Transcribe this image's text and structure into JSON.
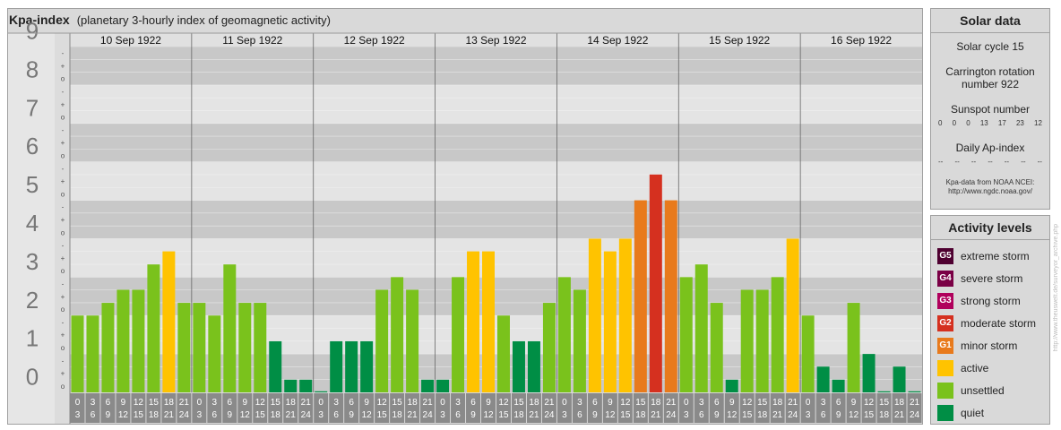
{
  "title": "Kpa-index",
  "subtitle": "(planetary 3-hourly index of geomagnetic activity)",
  "chart_data": {
    "type": "bar",
    "title": "Kpa-index",
    "subtitle": "(planetary 3-hourly index of geomagnetic activity)",
    "ylim": [
      0,
      9
    ],
    "y_ticks": [
      "0",
      "1",
      "2",
      "3",
      "4",
      "5",
      "6",
      "7",
      "8",
      "9"
    ],
    "minor_ticks": [
      "o",
      "+",
      "-"
    ],
    "days": [
      "10 Sep 1922",
      "11 Sep 1922",
      "12 Sep 1922",
      "13 Sep 1922",
      "14 Sep 1922",
      "15 Sep 1922",
      "16 Sep 1922"
    ],
    "hour_starts": [
      "0",
      "3",
      "6",
      "9",
      "12",
      "15",
      "18",
      "21"
    ],
    "hour_ends": [
      "3",
      "6",
      "9",
      "12",
      "15",
      "18",
      "21",
      "24"
    ],
    "values": [
      [
        2.0,
        2.0,
        2.33,
        2.67,
        2.67,
        3.33,
        3.67,
        2.33
      ],
      [
        2.33,
        2.0,
        3.33,
        2.33,
        2.33,
        1.33,
        0.33,
        0.33
      ],
      [
        0.0,
        1.33,
        1.33,
        1.33,
        2.67,
        3.0,
        2.67,
        0.33
      ],
      [
        0.33,
        3.0,
        3.67,
        3.67,
        2.0,
        1.33,
        1.33,
        2.33
      ],
      [
        3.0,
        2.67,
        4.0,
        3.67,
        4.0,
        5.0,
        5.67,
        5.0
      ],
      [
        3.0,
        3.33,
        2.33,
        0.33,
        2.67,
        2.67,
        3.0,
        4.0
      ],
      [
        2.0,
        0.67,
        0.33,
        2.33,
        1.0,
        0.0,
        0.67,
        0.0
      ]
    ],
    "colors": {
      "quiet": "#008e45",
      "unsettled": "#7ac21c",
      "active": "#ffc300",
      "minor": "#e87a1c",
      "moderate": "#d5301f",
      "strong": "#b0005c",
      "severe": "#7a0045",
      "extreme": "#4e0030"
    }
  },
  "solar": {
    "title": "Solar data",
    "cycle": "Solar cycle 15",
    "carrington_line1": "Carrington rotation",
    "carrington_line2": "number 922",
    "sunspot_label": "Sunspot number",
    "sunspots": [
      "0",
      "0",
      "0",
      "13",
      "17",
      "23",
      "12"
    ],
    "ap_label": "Daily Ap-index",
    "ap_values": [
      "--",
      "--",
      "--",
      "--",
      "--",
      "--",
      "--"
    ],
    "source_line1": "Kpa-data from NOAA NCEI:",
    "source_line2": "http://www.ngdc.noaa.gov/"
  },
  "activity": {
    "title": "Activity levels",
    "levels": [
      {
        "code": "G5",
        "label": "extreme storm",
        "color": "#4e0030"
      },
      {
        "code": "G4",
        "label": "severe storm",
        "color": "#7a0045"
      },
      {
        "code": "G3",
        "label": "strong storm",
        "color": "#b0005c"
      },
      {
        "code": "G2",
        "label": "moderate storm",
        "color": "#d5301f"
      },
      {
        "code": "G1",
        "label": "minor storm",
        "color": "#e87a1c"
      },
      {
        "code": "",
        "label": "active",
        "color": "#ffc300"
      },
      {
        "code": "",
        "label": "unsettled",
        "color": "#7ac21c"
      },
      {
        "code": "",
        "label": "quiet",
        "color": "#008e45"
      }
    ]
  },
  "credit": "http://www.theuswelt.de/surveyor_archive.php"
}
